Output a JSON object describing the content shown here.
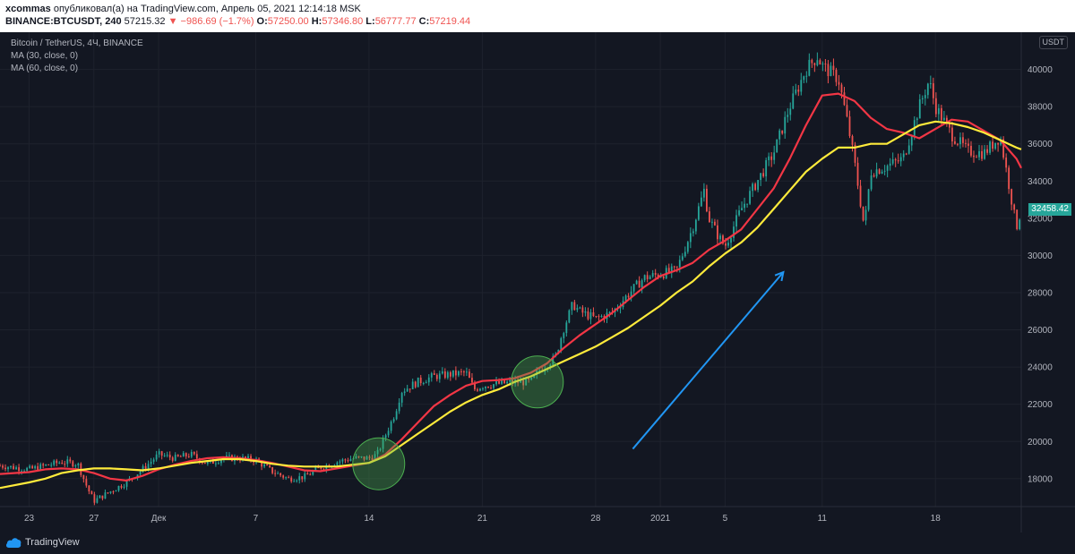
{
  "header": {
    "author": "xcommas",
    "published_text": "опубликовал(а) на TradingView.com, Апрель 05, 2021 12:14:18 MSK",
    "symbol": "BINANCE:BTCUSDT, 240",
    "last": "57215.32",
    "change": "▼ −986.69 (−1.7%)",
    "o_label": "O:",
    "o_val": "57250.00",
    "h_label": "H:",
    "h_val": "57346.80",
    "l_label": "L:",
    "l_val": "56777.77",
    "c_label": "C:",
    "c_val": "57219.44"
  },
  "legend": {
    "title": "Bitcoin / TetherUS, 4Ч, BINANCE",
    "ma1": "MA (30, close, 0)",
    "ma2": "MA (60, close, 0)"
  },
  "currency_badge": "USDT",
  "last_price_tag": "32458.42",
  "footer": {
    "brand": "TradingView"
  },
  "colors": {
    "background": "#131722",
    "up": "#26a69a",
    "down": "#ef5350",
    "ma30": "#f23645",
    "ma60": "#ffeb3b",
    "arrow": "#2196f3",
    "circle_fill": "#4caf50"
  },
  "chart_data": {
    "type": "candlestick",
    "y_axis_ticks": [
      18000,
      20000,
      22000,
      24000,
      26000,
      28000,
      30000,
      32000,
      34000,
      36000,
      38000,
      40000
    ],
    "y_range": [
      16500,
      42000
    ],
    "x_tick_labels": [
      "23",
      "27",
      "Дек",
      "7",
      "14",
      "21",
      "28",
      "2021",
      "5",
      "11",
      "18"
    ],
    "x_tick_days": [
      0,
      4,
      8,
      14,
      21,
      28,
      35,
      39,
      43,
      49,
      56
    ],
    "x_range_days": [
      -1.8,
      61.3
    ],
    "price_path": [
      [
        -1.8,
        18700
      ],
      [
        0,
        18500
      ],
      [
        2,
        18900
      ],
      [
        3,
        18800
      ],
      [
        3.6,
        17500
      ],
      [
        4,
        16800
      ],
      [
        5,
        17300
      ],
      [
        6,
        17800
      ],
      [
        7,
        18500
      ],
      [
        8,
        19300
      ],
      [
        9,
        19100
      ],
      [
        10,
        19300
      ],
      [
        11,
        18800
      ],
      [
        12,
        19100
      ],
      [
        13,
        19100
      ],
      [
        14,
        19000
      ],
      [
        15,
        18400
      ],
      [
        16,
        18000
      ],
      [
        17,
        18100
      ],
      [
        18,
        18600
      ],
      [
        19,
        18900
      ],
      [
        20,
        19100
      ],
      [
        21,
        19100
      ],
      [
        21.5,
        19300
      ],
      [
        22,
        20300
      ],
      [
        22.6,
        21500
      ],
      [
        23,
        22700
      ],
      [
        24,
        23200
      ],
      [
        25,
        23500
      ],
      [
        26,
        23600
      ],
      [
        27,
        23700
      ],
      [
        27.5,
        22800
      ],
      [
        28,
        23000
      ],
      [
        29,
        23100
      ],
      [
        30,
        23200
      ],
      [
        31,
        23200
      ],
      [
        31.5,
        23800
      ],
      [
        32.5,
        24500
      ],
      [
        33,
        26000
      ],
      [
        33.6,
        27400
      ],
      [
        34,
        27000
      ],
      [
        35,
        26600
      ],
      [
        36,
        26900
      ],
      [
        37,
        27900
      ],
      [
        38,
        28800
      ],
      [
        39,
        29000
      ],
      [
        40,
        29200
      ],
      [
        41,
        31500
      ],
      [
        41.7,
        33500
      ],
      [
        42,
        32000
      ],
      [
        42.6,
        31000
      ],
      [
        43,
        30500
      ],
      [
        44,
        32500
      ],
      [
        45,
        34000
      ],
      [
        46,
        35500
      ],
      [
        47,
        38000
      ],
      [
        48,
        40000
      ],
      [
        48.7,
        40700
      ],
      [
        49,
        40200
      ],
      [
        50,
        39500
      ],
      [
        50.6,
        37000
      ],
      [
        51,
        35000
      ],
      [
        51.6,
        31500
      ],
      [
        52,
        34500
      ],
      [
        53,
        34800
      ],
      [
        54,
        35200
      ],
      [
        55,
        38000
      ],
      [
        55.6,
        39400
      ],
      [
        56,
        38000
      ],
      [
        57,
        36500
      ],
      [
        58,
        35600
      ],
      [
        59,
        35500
      ],
      [
        60,
        36400
      ],
      [
        60.6,
        33500
      ],
      [
        61,
        31500
      ],
      [
        61.3,
        32458
      ]
    ],
    "series": [
      {
        "name": "MA (30, close, 0)",
        "points": [
          [
            -1.8,
            18250
          ],
          [
            0,
            18350
          ],
          [
            1,
            18500
          ],
          [
            2,
            18550
          ],
          [
            3,
            18500
          ],
          [
            4,
            18300
          ],
          [
            5,
            18000
          ],
          [
            6,
            17900
          ],
          [
            7,
            18150
          ],
          [
            8,
            18500
          ],
          [
            9,
            18750
          ],
          [
            10,
            18950
          ],
          [
            11,
            19100
          ],
          [
            12,
            19150
          ],
          [
            13,
            19100
          ],
          [
            14,
            19000
          ],
          [
            15,
            18850
          ],
          [
            16,
            18650
          ],
          [
            17,
            18450
          ],
          [
            18,
            18400
          ],
          [
            19,
            18550
          ],
          [
            20,
            18700
          ],
          [
            21,
            18850
          ],
          [
            22,
            19300
          ],
          [
            23,
            20100
          ],
          [
            24,
            21000
          ],
          [
            25,
            21900
          ],
          [
            26,
            22500
          ],
          [
            27,
            23000
          ],
          [
            28,
            23250
          ],
          [
            29,
            23300
          ],
          [
            30,
            23400
          ],
          [
            31,
            23700
          ],
          [
            32,
            24200
          ],
          [
            33,
            25000
          ],
          [
            34,
            25700
          ],
          [
            35,
            26300
          ],
          [
            36,
            26900
          ],
          [
            37,
            27600
          ],
          [
            38,
            28300
          ],
          [
            39,
            28900
          ],
          [
            40,
            29200
          ],
          [
            41,
            29600
          ],
          [
            42,
            30300
          ],
          [
            43,
            30800
          ],
          [
            44,
            31400
          ],
          [
            45,
            32500
          ],
          [
            46,
            33600
          ],
          [
            47,
            35200
          ],
          [
            48,
            37000
          ],
          [
            49,
            38600
          ],
          [
            50,
            38700
          ],
          [
            51,
            38300
          ],
          [
            52,
            37400
          ],
          [
            53,
            36800
          ],
          [
            54,
            36600
          ],
          [
            55,
            36300
          ],
          [
            56,
            36800
          ],
          [
            57,
            37300
          ],
          [
            58,
            37200
          ],
          [
            59,
            36700
          ],
          [
            60,
            36200
          ],
          [
            61,
            35200
          ],
          [
            61.3,
            34700
          ]
        ]
      },
      {
        "name": "MA (60, close, 0)",
        "points": [
          [
            -1.8,
            17500
          ],
          [
            0,
            17800
          ],
          [
            1,
            18000
          ],
          [
            2,
            18300
          ],
          [
            3,
            18450
          ],
          [
            4,
            18550
          ],
          [
            5,
            18550
          ],
          [
            6,
            18500
          ],
          [
            7,
            18450
          ],
          [
            8,
            18550
          ],
          [
            9,
            18700
          ],
          [
            10,
            18850
          ],
          [
            11,
            18950
          ],
          [
            12,
            19050
          ],
          [
            13,
            19050
          ],
          [
            14,
            18950
          ],
          [
            15,
            18800
          ],
          [
            16,
            18700
          ],
          [
            17,
            18650
          ],
          [
            18,
            18650
          ],
          [
            19,
            18650
          ],
          [
            20,
            18750
          ],
          [
            21,
            18850
          ],
          [
            22,
            19200
          ],
          [
            23,
            19800
          ],
          [
            24,
            20400
          ],
          [
            25,
            21000
          ],
          [
            26,
            21600
          ],
          [
            27,
            22100
          ],
          [
            28,
            22500
          ],
          [
            29,
            22800
          ],
          [
            30,
            23200
          ],
          [
            31,
            23500
          ],
          [
            32,
            23900
          ],
          [
            33,
            24300
          ],
          [
            34,
            24700
          ],
          [
            35,
            25100
          ],
          [
            36,
            25600
          ],
          [
            37,
            26100
          ],
          [
            38,
            26700
          ],
          [
            39,
            27300
          ],
          [
            40,
            28000
          ],
          [
            41,
            28600
          ],
          [
            42,
            29400
          ],
          [
            43,
            30100
          ],
          [
            44,
            30700
          ],
          [
            45,
            31500
          ],
          [
            46,
            32500
          ],
          [
            47,
            33500
          ],
          [
            48,
            34500
          ],
          [
            49,
            35200
          ],
          [
            50,
            35800
          ],
          [
            51,
            35800
          ],
          [
            52,
            36000
          ],
          [
            53,
            36000
          ],
          [
            54,
            36500
          ],
          [
            55,
            37000
          ],
          [
            56,
            37200
          ],
          [
            57,
            37100
          ],
          [
            58,
            36900
          ],
          [
            59,
            36600
          ],
          [
            60,
            36200
          ],
          [
            61,
            35800
          ],
          [
            61.3,
            35700
          ]
        ]
      }
    ]
  }
}
